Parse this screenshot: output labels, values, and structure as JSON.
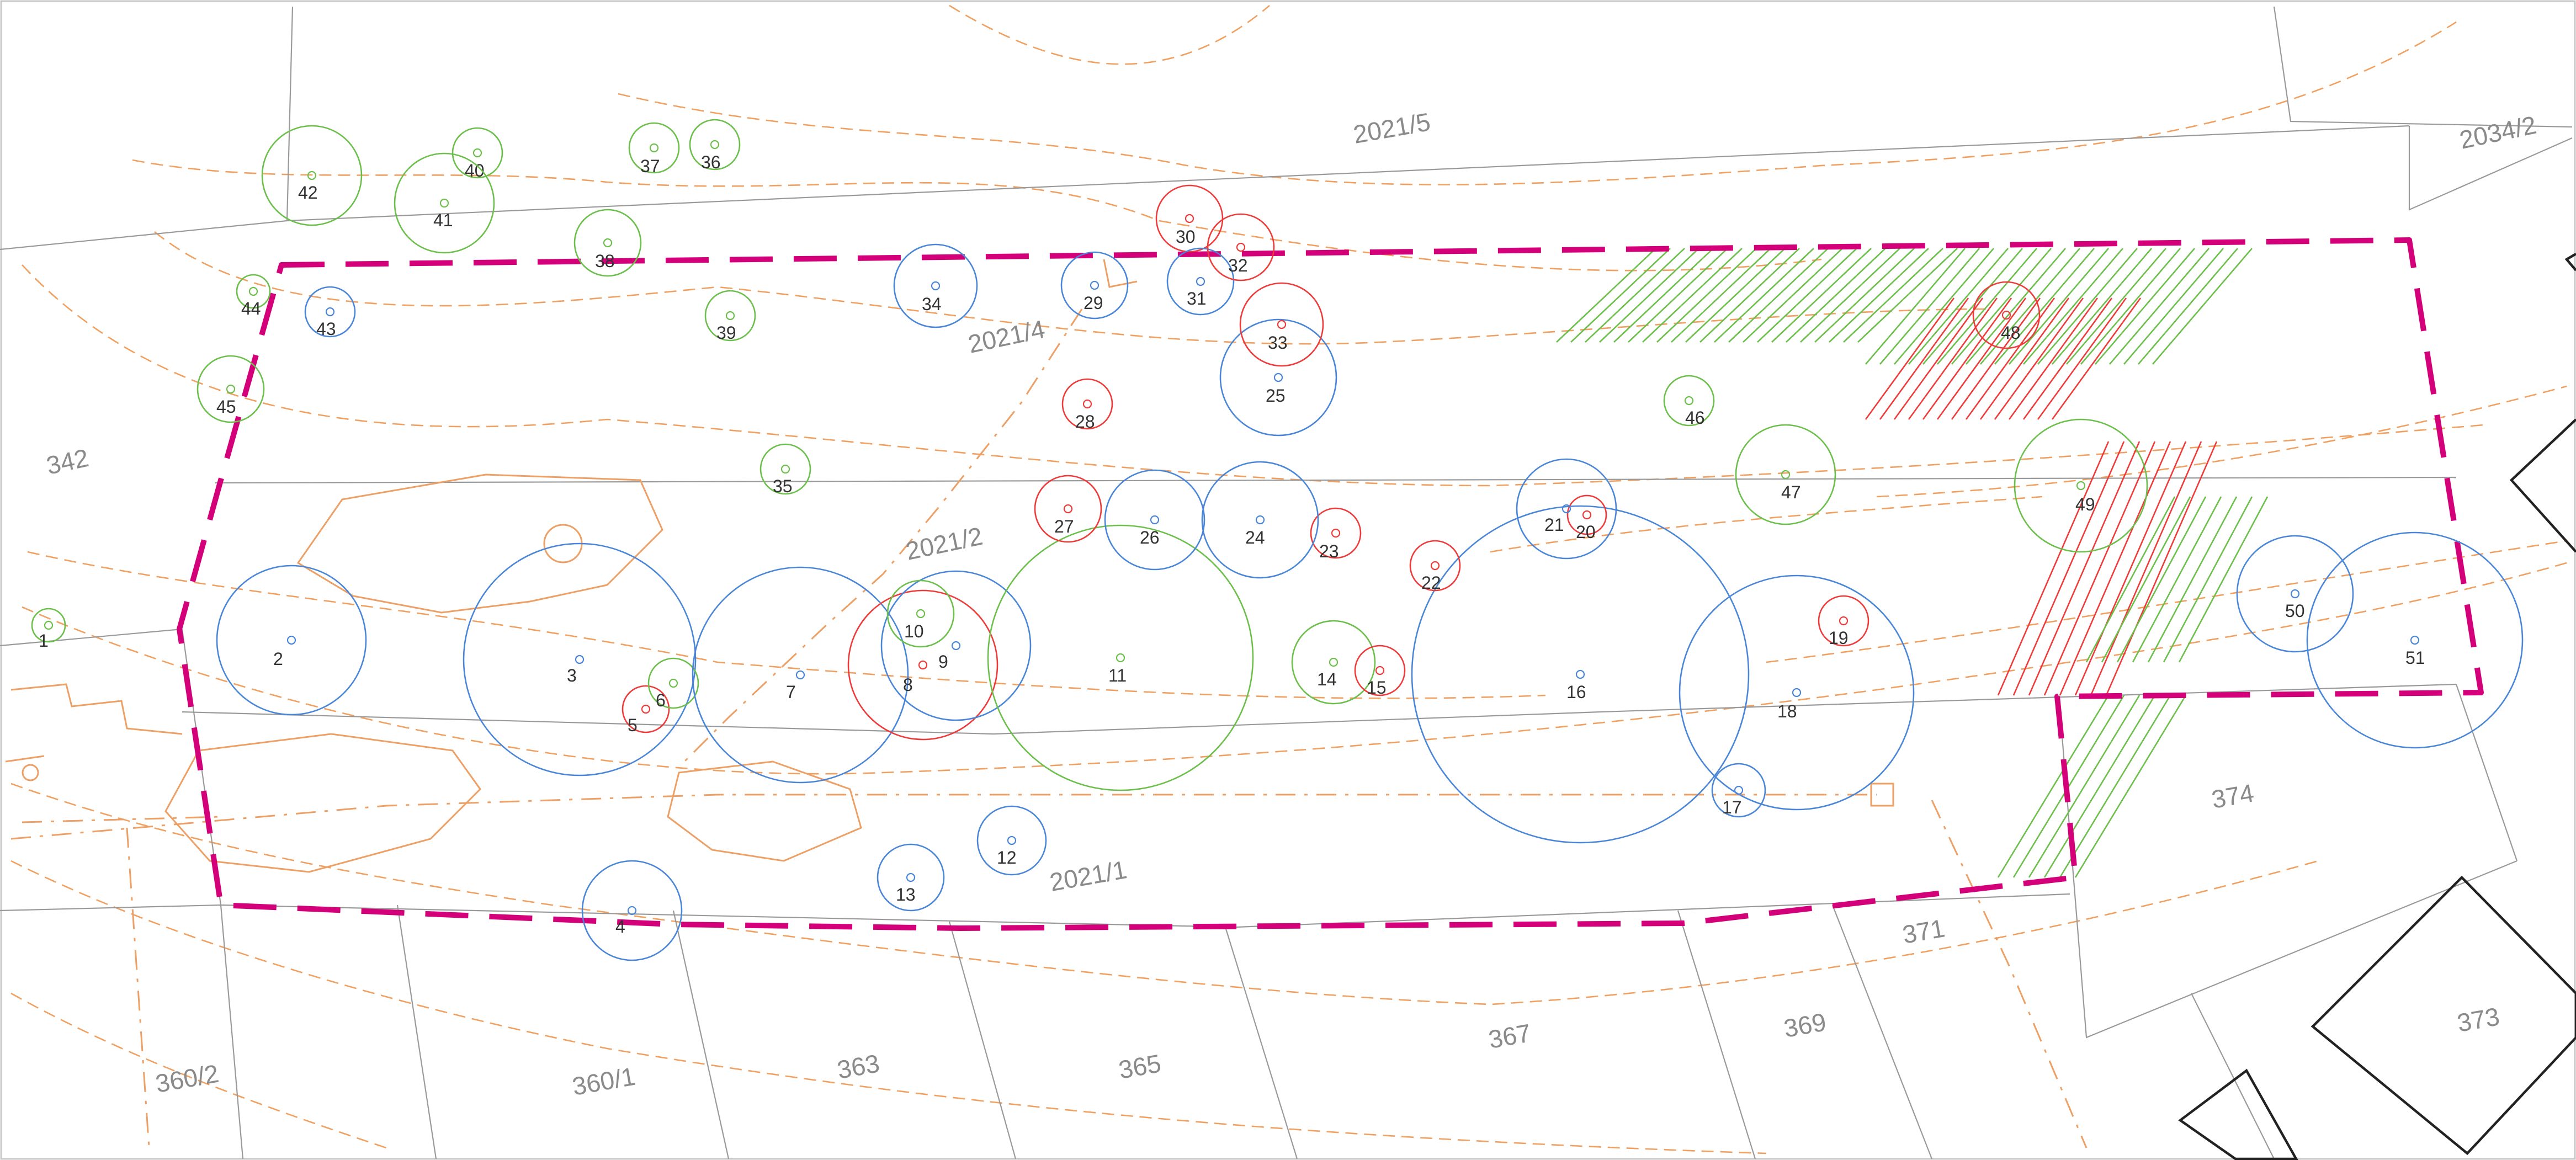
{
  "map": {
    "parcels": [
      "2021/5",
      "2034/2",
      "342",
      "2021/4",
      "2021/2",
      "2021/1",
      "374",
      "371",
      "373",
      "360/2",
      "360/1",
      "363",
      "365",
      "367",
      "369"
    ],
    "colors": {
      "boundary": "#d4007a",
      "tree_green": "#6bbf4a",
      "tree_blue": "#4a86d8",
      "tree_red": "#ef3a3a",
      "contour": "#f0a060",
      "parcel_line": "#9a9a9a"
    },
    "trees": [
      {
        "id": "1",
        "status": "green"
      },
      {
        "id": "2",
        "status": "blue"
      },
      {
        "id": "3",
        "status": "blue"
      },
      {
        "id": "4",
        "status": "blue"
      },
      {
        "id": "5",
        "status": "red"
      },
      {
        "id": "6",
        "status": "green"
      },
      {
        "id": "7",
        "status": "blue"
      },
      {
        "id": "8",
        "status": "red"
      },
      {
        "id": "9",
        "status": "blue"
      },
      {
        "id": "10",
        "status": "green"
      },
      {
        "id": "11",
        "status": "green"
      },
      {
        "id": "12",
        "status": "blue"
      },
      {
        "id": "13",
        "status": "blue"
      },
      {
        "id": "14",
        "status": "green"
      },
      {
        "id": "15",
        "status": "red"
      },
      {
        "id": "16",
        "status": "blue"
      },
      {
        "id": "17",
        "status": "blue"
      },
      {
        "id": "18",
        "status": "blue"
      },
      {
        "id": "19",
        "status": "red"
      },
      {
        "id": "20",
        "status": "red"
      },
      {
        "id": "21",
        "status": "blue"
      },
      {
        "id": "22",
        "status": "red"
      },
      {
        "id": "23",
        "status": "red"
      },
      {
        "id": "24",
        "status": "blue"
      },
      {
        "id": "25",
        "status": "blue"
      },
      {
        "id": "26",
        "status": "blue"
      },
      {
        "id": "27",
        "status": "red"
      },
      {
        "id": "28",
        "status": "red"
      },
      {
        "id": "29",
        "status": "blue"
      },
      {
        "id": "30",
        "status": "red"
      },
      {
        "id": "31",
        "status": "blue"
      },
      {
        "id": "32",
        "status": "red"
      },
      {
        "id": "33",
        "status": "red"
      },
      {
        "id": "34",
        "status": "blue"
      },
      {
        "id": "35",
        "status": "green"
      },
      {
        "id": "36",
        "status": "green"
      },
      {
        "id": "37",
        "status": "green"
      },
      {
        "id": "38",
        "status": "green"
      },
      {
        "id": "39",
        "status": "green"
      },
      {
        "id": "40",
        "status": "green"
      },
      {
        "id": "41",
        "status": "green"
      },
      {
        "id": "42",
        "status": "green"
      },
      {
        "id": "43",
        "status": "blue"
      },
      {
        "id": "44",
        "status": "green"
      },
      {
        "id": "45",
        "status": "green"
      },
      {
        "id": "46",
        "status": "green"
      },
      {
        "id": "47",
        "status": "green"
      },
      {
        "id": "48",
        "status": "red"
      },
      {
        "id": "49",
        "status": "green"
      },
      {
        "id": "50",
        "status": "blue"
      },
      {
        "id": "51",
        "status": "blue"
      }
    ]
  }
}
